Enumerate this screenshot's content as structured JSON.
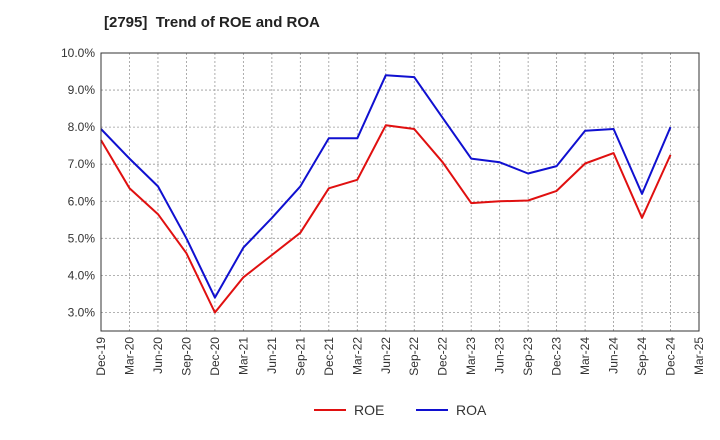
{
  "chart_data": {
    "type": "line",
    "title": "[2795]  Trend of ROE and ROA",
    "xlabel": "",
    "ylabel": "",
    "x": [
      "Dec-19",
      "Mar-20",
      "Jun-20",
      "Sep-20",
      "Dec-20",
      "Mar-21",
      "Jun-21",
      "Sep-21",
      "Dec-21",
      "Mar-22",
      "Jun-22",
      "Sep-22",
      "Dec-22",
      "Mar-23",
      "Jun-23",
      "Sep-23",
      "Dec-23",
      "Mar-24",
      "Jun-24",
      "Sep-24",
      "Dec-24",
      "Mar-25"
    ],
    "ylim": [
      2.5,
      10.0
    ],
    "yticks": [
      3.0,
      4.0,
      5.0,
      6.0,
      7.0,
      8.0,
      9.0,
      10.0
    ],
    "ytick_labels": [
      "3.0%",
      "4.0%",
      "5.0%",
      "6.0%",
      "7.0%",
      "8.0%",
      "9.0%",
      "10.0%"
    ],
    "grid": true,
    "legend_position": "bottom",
    "series": [
      {
        "name": "ROE",
        "color": "#e01010",
        "values": [
          7.65,
          6.35,
          5.65,
          4.6,
          3.0,
          3.95,
          4.55,
          5.15,
          6.35,
          6.58,
          8.05,
          7.95,
          7.05,
          5.95,
          6.0,
          6.02,
          6.28,
          7.02,
          7.3,
          5.55,
          7.25,
          null
        ]
      },
      {
        "name": "ROA",
        "color": "#1010d0",
        "values": [
          7.95,
          7.15,
          6.4,
          5.0,
          3.4,
          4.75,
          5.55,
          6.4,
          7.7,
          7.7,
          9.4,
          9.35,
          8.25,
          7.15,
          7.05,
          6.75,
          6.95,
          7.9,
          7.95,
          6.2,
          8.0,
          null
        ]
      }
    ]
  }
}
